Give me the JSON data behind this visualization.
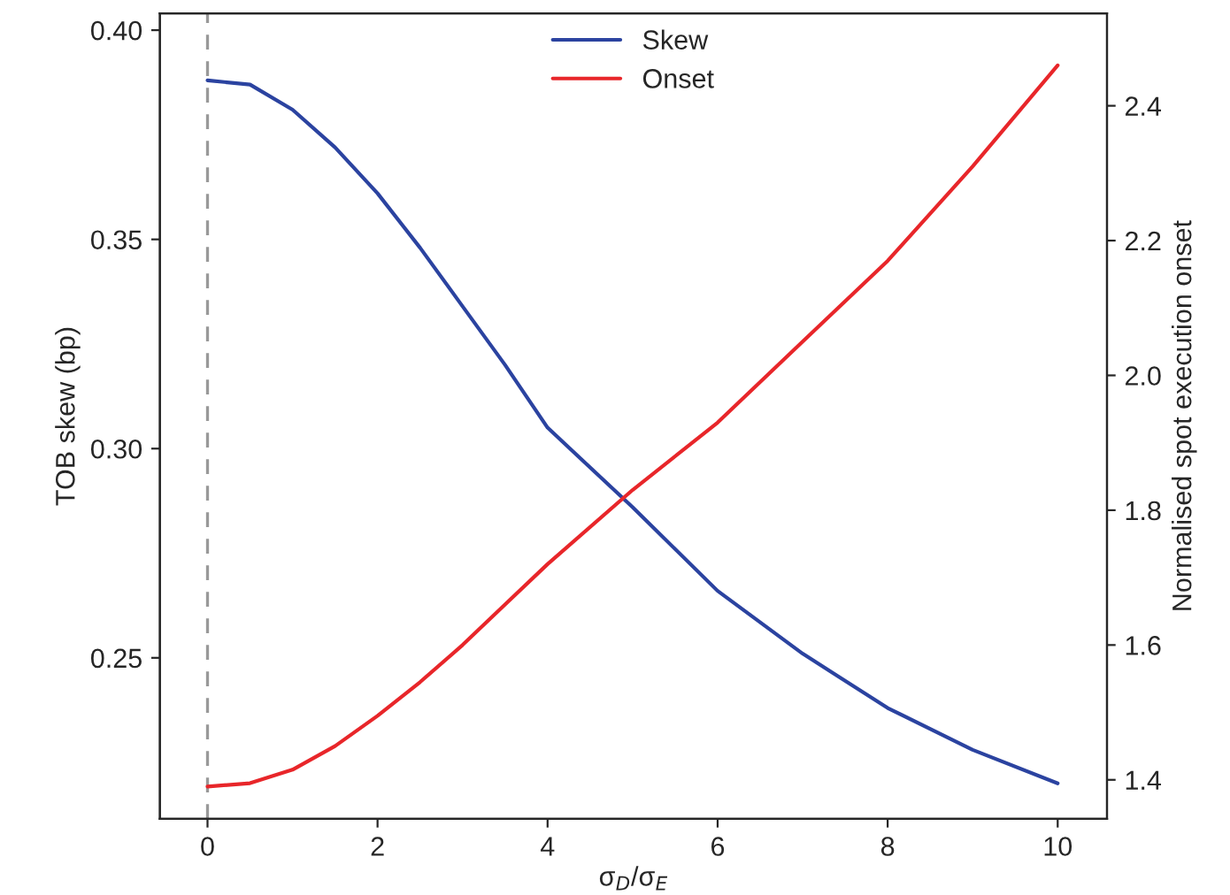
{
  "chart_data": {
    "type": "line",
    "xlabel": "σ$_{D}$/σ$_{E}$",
    "ylabel": "TOB skew (bp)",
    "y2label": "Normalised spot execution onset",
    "x": [
      0,
      0.5,
      1,
      1.5,
      2,
      2.5,
      3,
      3.5,
      4,
      5,
      6,
      7,
      8,
      9,
      10
    ],
    "series": [
      {
        "name": "Skew",
        "color": "#2b43a0",
        "values": [
          0.388,
          0.387,
          0.381,
          0.372,
          0.361,
          0.348,
          0.334,
          0.32,
          0.305,
          0.286,
          0.266,
          0.251,
          0.238,
          0.228,
          0.22
        ]
      },
      {
        "name": "Onset",
        "color": "#e8262a",
        "axis": "y2",
        "values": [
          1.39,
          1.395,
          1.415,
          1.45,
          1.495,
          1.545,
          1.6,
          1.66,
          1.72,
          1.83,
          1.93,
          2.05,
          2.17,
          2.31,
          2.46
        ]
      }
    ],
    "xlim": [
      -0.56,
      10.58
    ],
    "xticks": [
      0,
      2,
      4,
      6,
      8,
      10
    ],
    "ylim": [
      0.2115,
      0.404
    ],
    "yticks": [
      0.25,
      {
        "value": 0.3,
        "label": "0.30"
      },
      0.35,
      {
        "value": 0.4,
        "label": "0.40"
      }
    ],
    "y2lim": [
      1.342,
      2.537
    ],
    "y2ticks": [
      1.4,
      1.6,
      1.8,
      {
        "value": 2,
        "label": "2.0"
      },
      2.2,
      2.4
    ],
    "ref_lines": [
      {
        "axis": "x",
        "value": 0,
        "color": "#999999",
        "line_style": "dashed"
      }
    ],
    "legend": "top",
    "grid": false
  }
}
